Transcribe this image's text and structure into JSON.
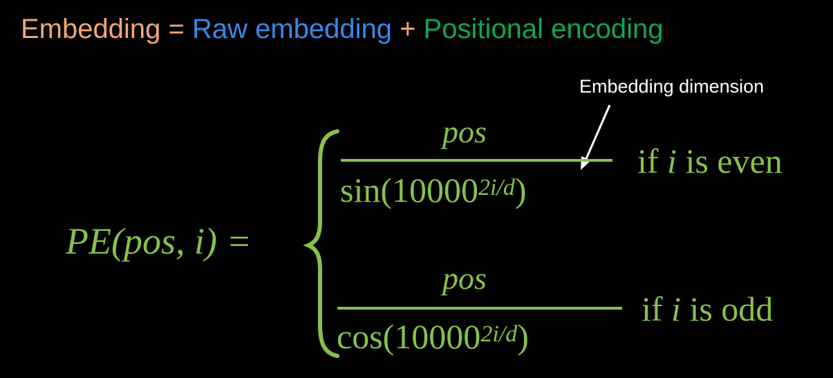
{
  "headline": {
    "embedding": "Embedding",
    "equals": " = ",
    "raw": "Raw embedding",
    "plus": " + ",
    "positional": "Positional encoding"
  },
  "colors": {
    "embedding": "#f0a678",
    "equals": "#f0a678",
    "raw": "#3b86e6",
    "plus": "#f0a678",
    "positional": "#14a550",
    "math": "#86c24a",
    "annotation": "#ffffff"
  },
  "annotation": {
    "label": "Embedding dimension"
  },
  "formula": {
    "lhs": "PE(pos, i) =",
    "cases": [
      {
        "numerator": "pos",
        "func": "sin(10000",
        "exponent": "2i/d",
        "close": ")",
        "cond_prefix": "if ",
        "cond_var": "i",
        "cond_suffix": " is even"
      },
      {
        "numerator": "pos",
        "func": "cos(10000",
        "exponent": "2i/d",
        "close": ")",
        "cond_prefix": "if ",
        "cond_var": "i",
        "cond_suffix": " is odd"
      }
    ]
  }
}
